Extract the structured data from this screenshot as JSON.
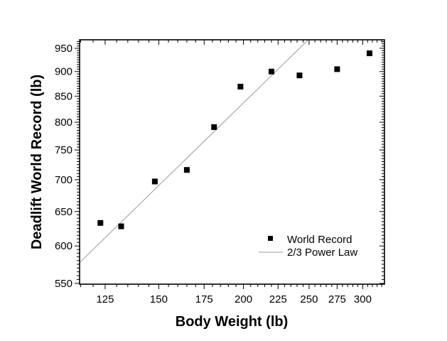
{
  "chart_data": {
    "type": "scatter",
    "title": "",
    "xlabel": "Body Weight (lb)",
    "ylabel": "Deadlift World Record (lb)",
    "xscale": "log",
    "yscale": "log",
    "xlim": [
      114.6,
      323
    ],
    "ylim": [
      549,
      969
    ],
    "xticks": [
      125,
      150,
      175,
      200,
      225,
      250,
      275,
      300
    ],
    "xtick_labels": [
      "125",
      "150",
      "175",
      "200",
      "225",
      "250",
      "275",
      "300"
    ],
    "yticks": [
      550,
      600,
      650,
      700,
      750,
      800,
      850,
      900,
      950
    ],
    "ytick_labels": [
      "550",
      "600",
      "650",
      "700",
      "750",
      "800",
      "850",
      "900",
      "950"
    ],
    "grid": false,
    "legend_position": "bottom-right",
    "series": [
      {
        "name": "World Record",
        "kind": "scatter",
        "marker": "square",
        "color": "#000000",
        "x": [
          123,
          132,
          148,
          165,
          181,
          198,
          220,
          242,
          275,
          307
        ],
        "y": [
          633,
          628,
          697,
          716,
          791,
          869,
          900,
          892,
          905,
          939
        ]
      },
      {
        "name": "2/3 Power Law",
        "kind": "line",
        "color": "#9a9a9a",
        "exponent": 0.6667,
        "coefficient": 24.46
      }
    ]
  }
}
